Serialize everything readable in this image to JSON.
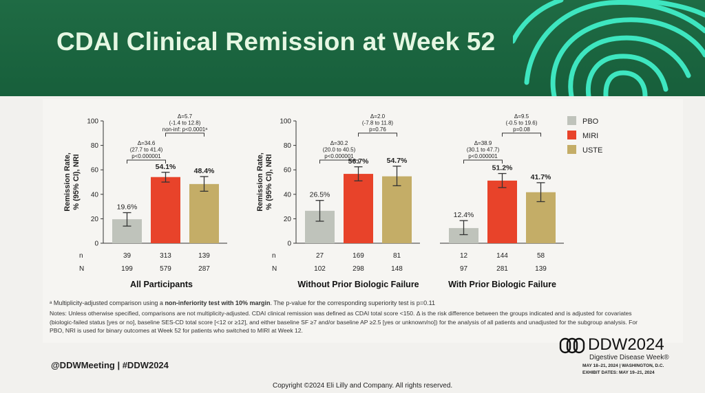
{
  "slide": {
    "title": "CDAI Clinical Remission at Week 52",
    "footnote_prefix": "ᵃ Multiplicity-adjusted comparison using a ",
    "footnote_bold": "non-inferiority test with 10% margin",
    "footnote_suffix": ". The p-value for the corresponding superiority test is p=0.11",
    "notes": "Notes: Unless otherwise specified, comparisons are not multiplicity-adjusted. CDAI clinical remission was defined as CDAI total score <150. Δ is the risk difference between the groups indicated and is adjusted for covariates (biologic-failed status [yes or no], baseline SES-CD total score [<12 or ≥12], and either baseline SF ≥7 and/or baseline AP ≥2.5 [yes or unknown/no]) for the analysis of all patients and unadjusted for the subgroup analysis. For PBO, NRI is used for binary outcomes at Week 52 for patients who switched to MIRI at Week 12.",
    "hashtag": "@DDWMeeting | #DDW2024",
    "copyright": "Copyright ©2024 Eli Lilly and Company. All rights reserved.",
    "ddw": {
      "brand": "DDW",
      "year": "2024",
      "subtitle": "Digestive Disease Week®",
      "dates": "MAY 18–21, 2024 | WASHINGTON, D.C.",
      "exhibit": "EXHIBIT DATES: MAY 19–21, 2024"
    }
  },
  "colors": {
    "header_green": "#1f6b44",
    "title_text": "#e6f7e3",
    "fingerprint": "#3ee6c0",
    "PBO": "#bfc3bb",
    "MIRI": "#e8432a",
    "USTE": "#c4ad67"
  },
  "chart_data": [
    {
      "type": "bar",
      "title": "All Participants",
      "ylabel": "Remission Rate, % (95% CI), NRI",
      "ylim": [
        0,
        100
      ],
      "yticks": [
        "0",
        "20",
        "40",
        "60",
        "80",
        "100"
      ],
      "categories": [
        "PBO",
        "MIRI",
        "USTE"
      ],
      "values": [
        19.6,
        54.1,
        48.4
      ],
      "value_labels": [
        "19.6%",
        "54.1%",
        "48.4%"
      ],
      "ci_low": [
        14,
        50,
        42.5
      ],
      "ci_high": [
        25,
        58,
        54.5
      ],
      "n_label": "n",
      "N_label": "N",
      "n": [
        "39",
        "313",
        "139"
      ],
      "N": [
        "199",
        "579",
        "287"
      ],
      "comparisons": [
        {
          "from": 0,
          "to": 1,
          "level": 68,
          "lines": [
            "Δ=34.6",
            "(27.7 to 41.4)",
            "p<0.000001"
          ]
        },
        {
          "from": 1,
          "to": 2,
          "level": 90,
          "lines": [
            "Δ=5.7",
            "(-1.4 to 12.8)",
            "non-inf: p<0.0001ᵃ"
          ]
        }
      ]
    },
    {
      "type": "bar",
      "title": "Without Prior Biologic Failure",
      "ylabel": "Remission Rate, % (95% CI), NRI",
      "ylim": [
        0,
        100
      ],
      "yticks": [
        "0",
        "20",
        "40",
        "60",
        "80",
        "100"
      ],
      "categories": [
        "PBO",
        "MIRI",
        "USTE"
      ],
      "values": [
        26.5,
        56.7,
        54.7
      ],
      "value_labels": [
        "26.5%",
        "56.7%",
        "54.7%"
      ],
      "ci_low": [
        18,
        51,
        47
      ],
      "ci_high": [
        35,
        62.5,
        63
      ],
      "n_label": "n",
      "N_label": "N",
      "n": [
        "27",
        "169",
        "81"
      ],
      "N": [
        "102",
        "298",
        "148"
      ],
      "comparisons": [
        {
          "from": 0,
          "to": 1,
          "level": 68,
          "lines": [
            "Δ=30.2",
            "(20.0 to 40.5)",
            "p<0.000001"
          ]
        },
        {
          "from": 1,
          "to": 2,
          "level": 90,
          "lines": [
            "Δ=2.0",
            "(-7.8 to 11.8)",
            "p=0.76"
          ]
        }
      ]
    },
    {
      "type": "bar",
      "title": "With Prior Biologic Failure",
      "categories": [
        "PBO",
        "MIRI",
        "USTE"
      ],
      "values": [
        12.4,
        51.2,
        41.7
      ],
      "value_labels": [
        "12.4%",
        "51.2%",
        "41.7%"
      ],
      "ci_low": [
        7,
        45.5,
        34
      ],
      "ci_high": [
        18.5,
        57,
        49.5
      ],
      "ylim": [
        0,
        100
      ],
      "n": [
        "12",
        "144",
        "58"
      ],
      "N": [
        "97",
        "281",
        "139"
      ],
      "comparisons": [
        {
          "from": 0,
          "to": 1,
          "level": 68,
          "lines": [
            "Δ=38.9",
            "(30.1 to 47.7)",
            "p<0.000001"
          ]
        },
        {
          "from": 1,
          "to": 2,
          "level": 90,
          "lines": [
            "Δ=9.5",
            "(-0.5 to 19.6)",
            "p=0.08"
          ]
        }
      ],
      "legend": [
        "PBO",
        "MIRI",
        "USTE"
      ]
    }
  ]
}
